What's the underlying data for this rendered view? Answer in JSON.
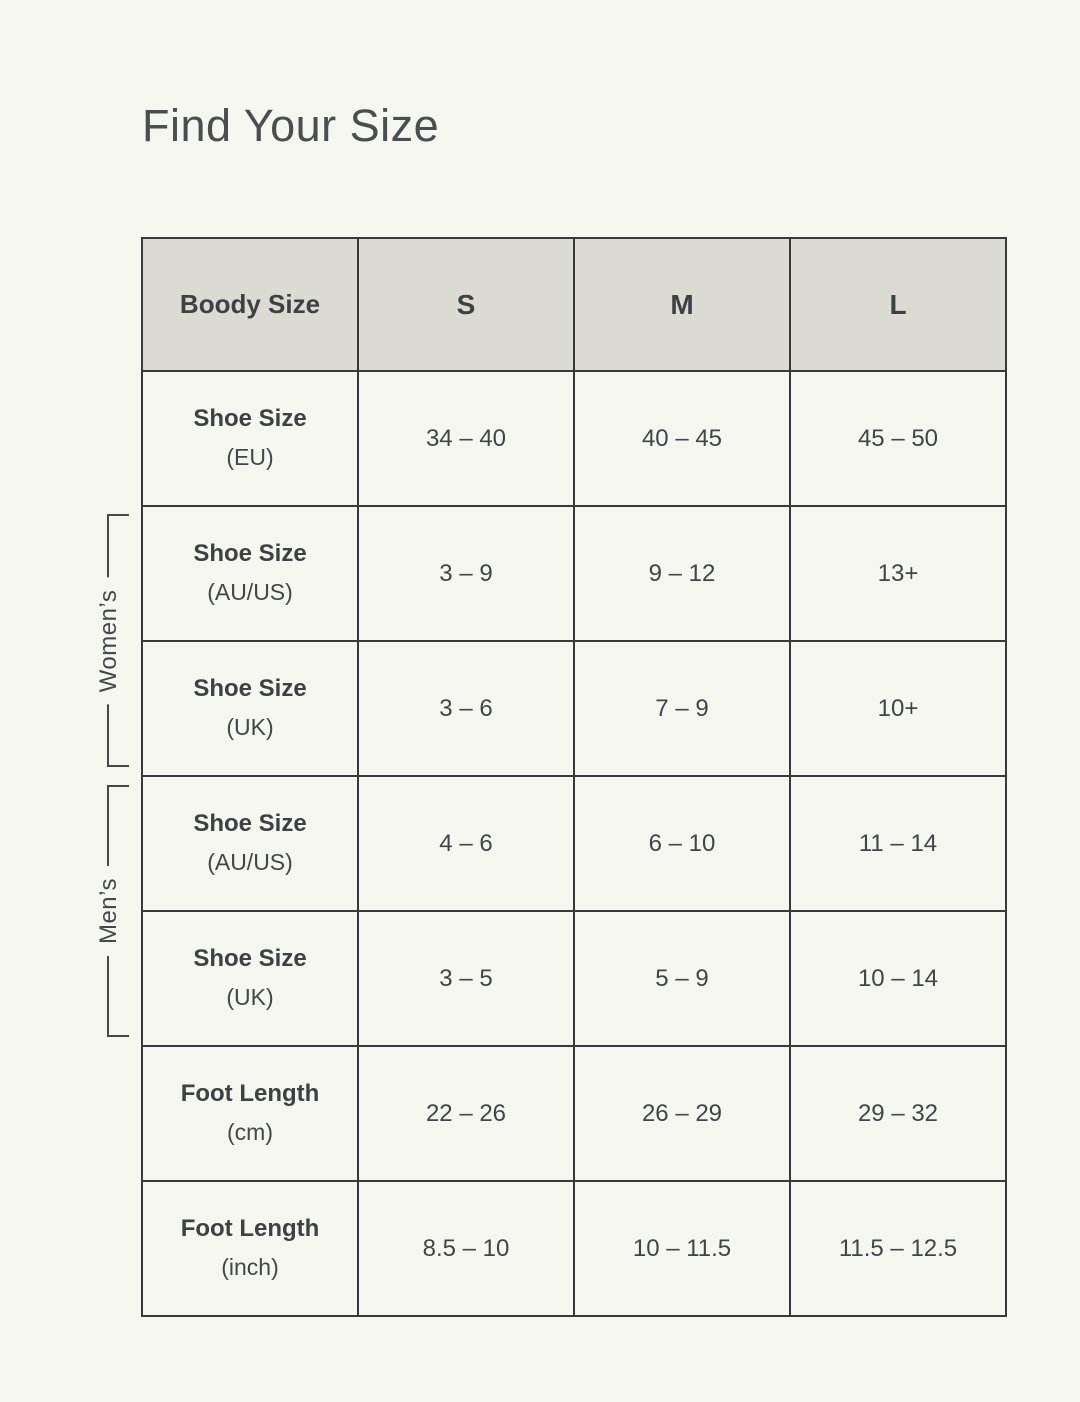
{
  "title": "Find Your Size",
  "table": {
    "header": [
      "Boody Size",
      "S",
      "M",
      "L"
    ],
    "rows": [
      {
        "label": "Shoe Size",
        "unit": "(EU)",
        "values": [
          "34 – 40",
          "40 – 45",
          "45 – 50"
        ]
      },
      {
        "label": "Shoe Size",
        "unit": "(AU/US)",
        "values": [
          "3 – 9",
          "9 – 12",
          "13+"
        ]
      },
      {
        "label": "Shoe Size",
        "unit": "(UK)",
        "values": [
          "3 – 6",
          "7 – 9",
          "10+"
        ]
      },
      {
        "label": "Shoe Size",
        "unit": "(AU/US)",
        "values": [
          "4 – 6",
          "6 – 10",
          "11 – 14"
        ]
      },
      {
        "label": "Shoe Size",
        "unit": "(UK)",
        "values": [
          "3 – 5",
          "5 – 9",
          "10 – 14"
        ]
      },
      {
        "label": "Foot Length",
        "unit": "(cm)",
        "values": [
          "22 – 26",
          "26 – 29",
          "29 – 32"
        ]
      },
      {
        "label": "Foot Length",
        "unit": "(inch)",
        "values": [
          "8.5 – 10",
          "10 – 11.5",
          "11.5 – 12.5"
        ]
      }
    ],
    "groups": [
      {
        "label": "Women’s",
        "spans_rows": "Shoe Size (AU/US) and Shoe Size (UK)"
      },
      {
        "label": "Men’s",
        "spans_rows": "Shoe Size (AU/US) and Shoe Size (UK)"
      }
    ]
  },
  "colors": {
    "page_background": "#f6f6f1",
    "header_background": "#dbdbd3",
    "border": "#38393b",
    "text": "#3f4246"
  },
  "chart_data": {
    "type": "table",
    "title": "Find Your Size",
    "columns": [
      "Boody Size",
      "S",
      "M",
      "L"
    ],
    "rows": [
      [
        "Shoe Size (EU)",
        "34 – 40",
        "40 – 45",
        "45 – 50"
      ],
      [
        "Shoe Size (AU/US)",
        "3 – 9",
        "9 – 12",
        "13+"
      ],
      [
        "Shoe Size (UK)",
        "3 – 6",
        "7 – 9",
        "10+"
      ],
      [
        "Shoe Size (AU/US)",
        "4 – 6",
        "6 – 10",
        "11 – 14"
      ],
      [
        "Shoe Size (UK)",
        "3 – 5",
        "5 – 9",
        "10 – 14"
      ],
      [
        "Foot Length (cm)",
        "22 – 26",
        "26 – 29",
        "29 – 32"
      ],
      [
        "Foot Length (inch)",
        "8.5 – 10",
        "10 – 11.5",
        "11.5 – 12.5"
      ]
    ],
    "row_groups": [
      {
        "label": "Women’s",
        "row_indexes": [
          1,
          2
        ]
      },
      {
        "label": "Men’s",
        "row_indexes": [
          3,
          4
        ]
      }
    ],
    "legend_position": "none",
    "grid": true
  }
}
